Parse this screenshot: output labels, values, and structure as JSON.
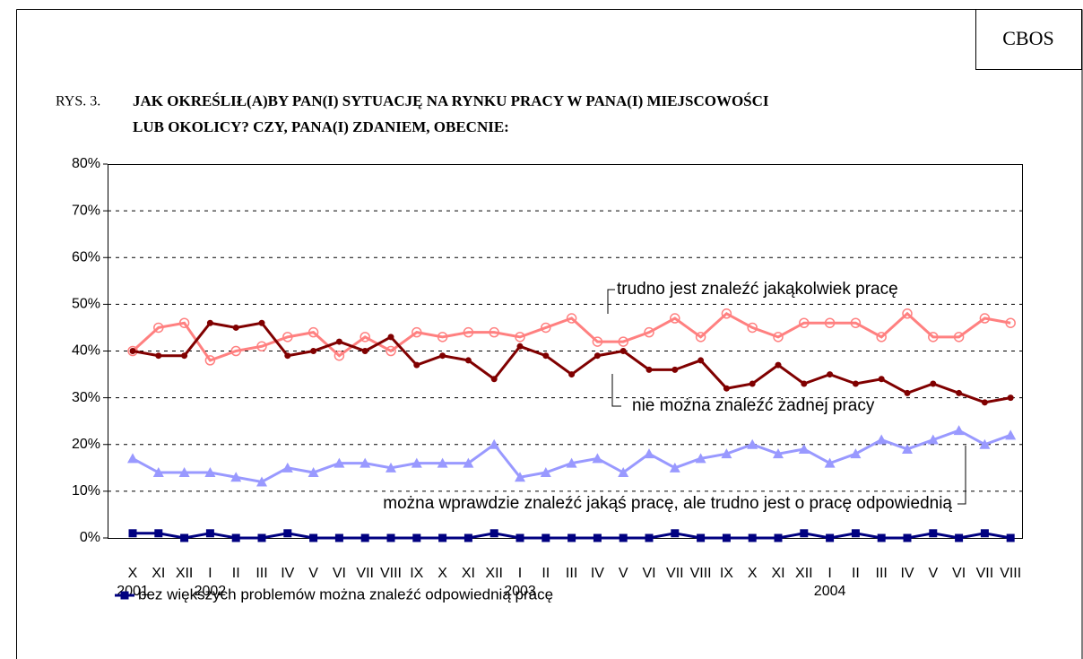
{
  "header": {
    "badge": "CBOS",
    "figure_label": "RYS. 3.",
    "title_lines": [
      "JAK OKREŚLIŁ(A)BY PAN(I) SYTUACJĘ NA RYNKU PRACY W PANA(I) MIEJSCOWOŚCI",
      "LUB OKOLICY? CZY, PANA(I) ZDANIEM, OBECNIE:"
    ]
  },
  "chart_data": {
    "type": "line",
    "categories": [
      "X",
      "XI",
      "XII",
      "I",
      "II",
      "III",
      "IV",
      "V",
      "VI",
      "VII",
      "VIII",
      "IX",
      "X",
      "XI",
      "XII",
      "I",
      "II",
      "III",
      "IV",
      "V",
      "VI",
      "VII",
      "VIII",
      "IX",
      "X",
      "XI",
      "XII",
      "I",
      "II",
      "III",
      "IV",
      "V",
      "VI",
      "VII",
      "VIII"
    ],
    "years": [
      "2001",
      null,
      null,
      "2002",
      null,
      null,
      null,
      null,
      null,
      null,
      null,
      null,
      null,
      null,
      null,
      "2003",
      null,
      null,
      null,
      null,
      null,
      null,
      null,
      null,
      null,
      null,
      null,
      "2004",
      null,
      null,
      null,
      null,
      null,
      null,
      null
    ],
    "ylim": [
      0,
      80
    ],
    "yticks": [
      {
        "value": 0,
        "label": "0%"
      },
      {
        "value": 10,
        "label": "10%"
      },
      {
        "value": 20,
        "label": "20%"
      },
      {
        "value": 30,
        "label": "30%"
      },
      {
        "value": 40,
        "label": "40%"
      },
      {
        "value": 50,
        "label": "50%"
      },
      {
        "value": 60,
        "label": "60%"
      },
      {
        "value": 70,
        "label": "70%"
      },
      {
        "value": 80,
        "label": "80%"
      }
    ],
    "grid": true,
    "series": [
      {
        "name": "trudno jest znaleźć jakąkolwiek pracę",
        "color": "#ff8080",
        "marker": "circle-open",
        "values": [
          40,
          45,
          46,
          38,
          40,
          41,
          43,
          44,
          39,
          43,
          40,
          44,
          43,
          44,
          44,
          43,
          45,
          47,
          42,
          42,
          44,
          47,
          43,
          48,
          45,
          43,
          46,
          46,
          46,
          43,
          48,
          43,
          43,
          47,
          46
        ]
      },
      {
        "name": "nie można znaleźć żadnej pracy",
        "color": "#800000",
        "marker": "circle",
        "values": [
          40,
          39,
          39,
          46,
          45,
          46,
          39,
          40,
          42,
          40,
          43,
          37,
          39,
          38,
          34,
          41,
          39,
          35,
          39,
          40,
          36,
          36,
          38,
          32,
          33,
          37,
          33,
          35,
          33,
          34,
          31,
          33,
          31,
          29,
          30
        ]
      },
      {
        "name": "można wprawdzie znaleźć jakąś pracę, ale trudno jest o pracę odpowiednią",
        "color": "#9999ff",
        "marker": "triangle",
        "values": [
          17,
          14,
          14,
          14,
          13,
          12,
          15,
          14,
          16,
          16,
          15,
          16,
          16,
          16,
          20,
          13,
          14,
          16,
          17,
          14,
          18,
          15,
          17,
          18,
          20,
          18,
          19,
          16,
          18,
          21,
          19,
          21,
          23,
          20,
          22
        ]
      },
      {
        "name": "bez większych problemów można znaleźć odpowiednią pracę",
        "color": "#000080",
        "marker": "square",
        "values": [
          1,
          1,
          0,
          1,
          0,
          0,
          1,
          0,
          0,
          0,
          0,
          0,
          0,
          0,
          1,
          0,
          0,
          0,
          0,
          0,
          0,
          1,
          0,
          0,
          0,
          0,
          1,
          0,
          1,
          0,
          0,
          1,
          0,
          1,
          0
        ]
      }
    ]
  }
}
